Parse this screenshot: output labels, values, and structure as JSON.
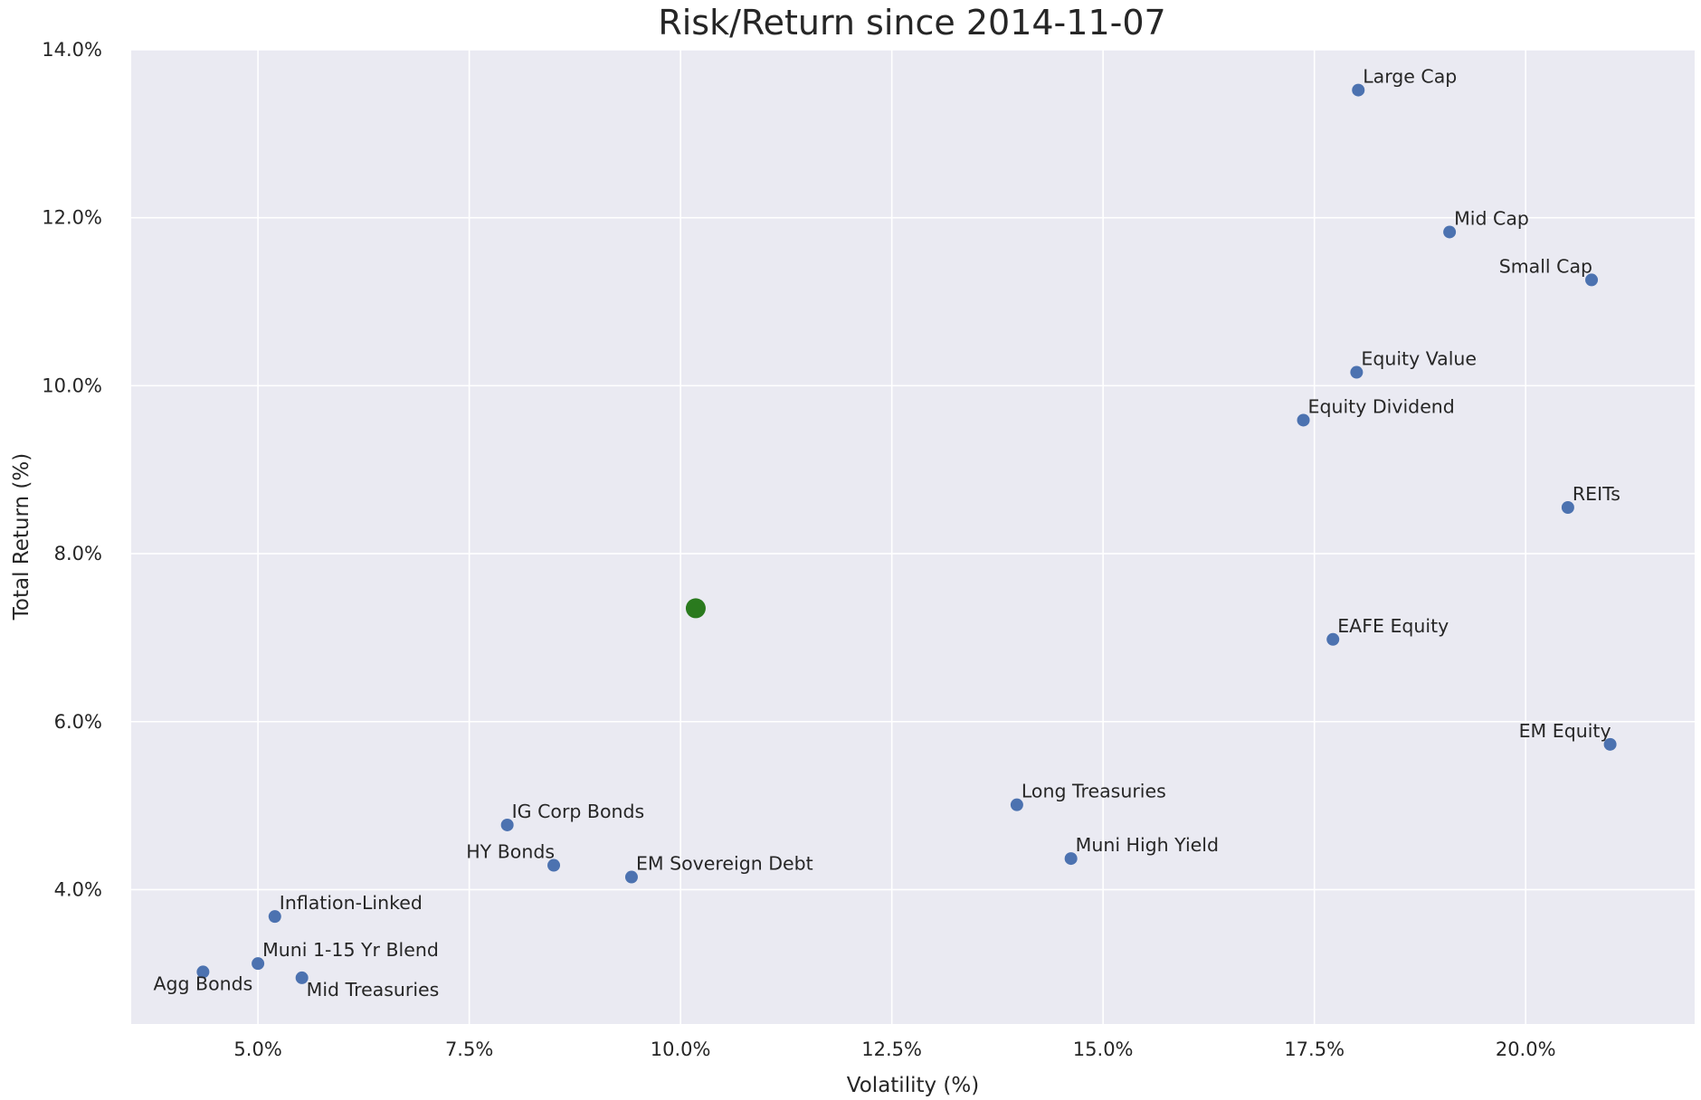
{
  "chart_data": {
    "type": "scatter",
    "title": "Risk/Return since 2014-11-07",
    "xlabel": "Volatility (%)",
    "ylabel": "Total Return (%)",
    "xlim": [
      3.5,
      22.0
    ],
    "ylim": [
      2.4,
      14.0
    ],
    "x_ticks": [
      5.0,
      7.5,
      10.0,
      12.5,
      15.0,
      17.5,
      20.0
    ],
    "x_tick_labels": [
      "5.0%",
      "7.5%",
      "10.0%",
      "12.5%",
      "15.0%",
      "17.5%",
      "20.0%"
    ],
    "y_ticks": [
      4.0,
      6.0,
      8.0,
      10.0,
      12.0,
      14.0
    ],
    "y_tick_labels": [
      "4.0%",
      "6.0%",
      "8.0%",
      "10.0%",
      "12.0%",
      "14.0%"
    ],
    "grid": true,
    "colors": {
      "background": "#eaeaf2",
      "grid": "#ffffff",
      "series": "#4c72b0",
      "highlight": "#2a7a1e",
      "text": "#262626"
    },
    "series": [
      {
        "points": [
          {
            "label": "Large Cap",
            "x": 18.02,
            "y": 13.52,
            "label_anchor": "start",
            "label_pos": "above"
          },
          {
            "label": "Mid Cap",
            "x": 19.1,
            "y": 11.83,
            "label_anchor": "start",
            "label_pos": "above"
          },
          {
            "label": "Small Cap",
            "x": 20.78,
            "y": 11.26,
            "label_anchor": "end",
            "label_pos": "above"
          },
          {
            "label": "Equity Value",
            "x": 18.0,
            "y": 10.16,
            "label_anchor": "start",
            "label_pos": "above"
          },
          {
            "label": "Equity Dividend",
            "x": 17.37,
            "y": 9.59,
            "label_anchor": "start",
            "label_pos": "above"
          },
          {
            "label": "REITs",
            "x": 20.5,
            "y": 8.55,
            "label_anchor": "start",
            "label_pos": "above"
          },
          {
            "label": "EAFE Equity",
            "x": 17.72,
            "y": 6.98,
            "label_anchor": "start",
            "label_pos": "above"
          },
          {
            "label": "EM Equity",
            "x": 21.0,
            "y": 5.73,
            "label_anchor": "end",
            "label_pos": "above"
          },
          {
            "label": "Long Treasuries",
            "x": 13.98,
            "y": 5.01,
            "label_anchor": "start",
            "label_pos": "above"
          },
          {
            "label": "Muni High Yield",
            "x": 14.62,
            "y": 4.37,
            "label_anchor": "start",
            "label_pos": "above"
          },
          {
            "label": "IG Corp Bonds",
            "x": 7.95,
            "y": 4.77,
            "label_anchor": "start",
            "label_pos": "above"
          },
          {
            "label": "HY Bonds",
            "x": 8.5,
            "y": 4.29,
            "label_anchor": "end",
            "label_pos": "above"
          },
          {
            "label": "EM Sovereign Debt",
            "x": 9.42,
            "y": 4.15,
            "label_anchor": "start",
            "label_pos": "above"
          },
          {
            "label": "Inflation-Linked",
            "x": 5.2,
            "y": 3.68,
            "label_anchor": "start",
            "label_pos": "above"
          },
          {
            "label": "Muni 1-15 Yr Blend",
            "x": 5.0,
            "y": 3.12,
            "label_anchor": "start",
            "label_pos": "above"
          },
          {
            "label": "Agg Bonds",
            "x": 4.35,
            "y": 3.02,
            "label_anchor": "middle",
            "label_pos": "below"
          },
          {
            "label": "Mid Treasuries",
            "x": 5.52,
            "y": 2.95,
            "label_anchor": "start",
            "label_pos": "below"
          }
        ]
      }
    ],
    "highlight_point": {
      "x": 10.18,
      "y": 7.35
    }
  }
}
